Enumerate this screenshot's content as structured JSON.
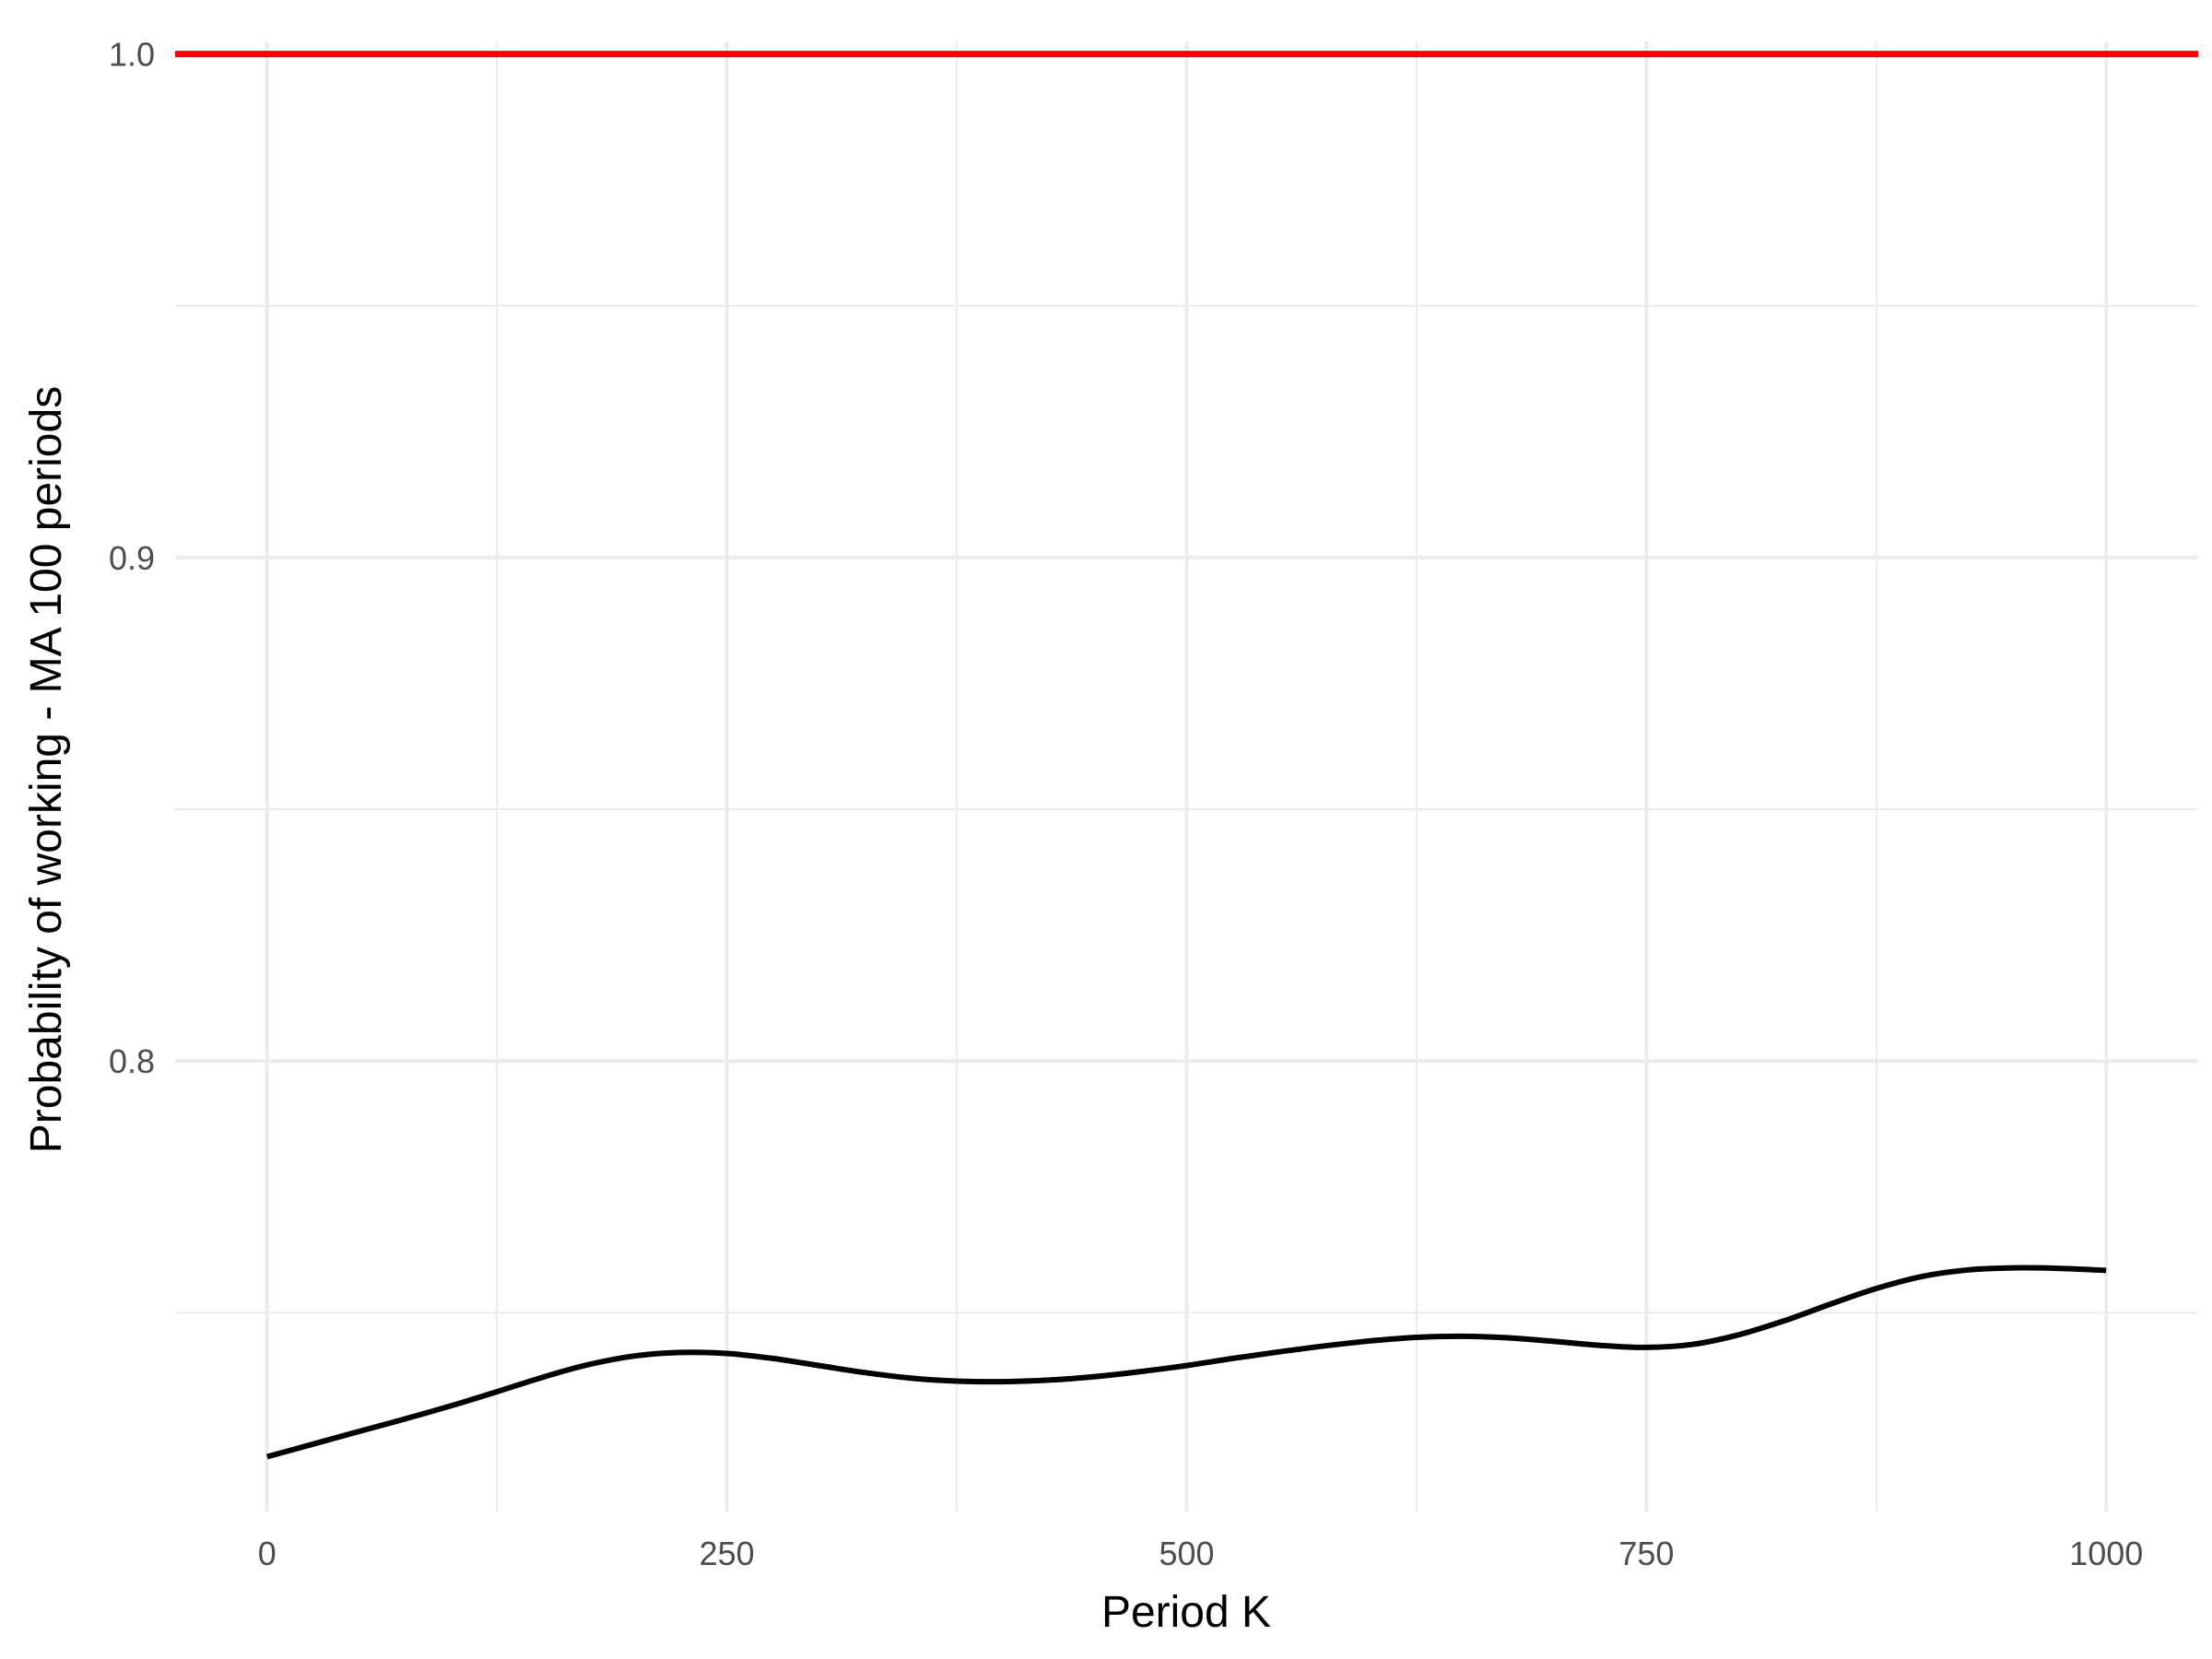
{
  "chart_data": {
    "type": "line",
    "title": "",
    "xlabel": "Period K",
    "ylabel": "Probability of working - MA 100 periods",
    "xlim": [
      -50,
      1050
    ],
    "ylim": [
      0.7105,
      1.0025
    ],
    "x_ticks": [
      0,
      250,
      500,
      750,
      1000
    ],
    "x_tick_labels": [
      "0",
      "250",
      "500",
      "750",
      "1000"
    ],
    "x_minor_ticks": [
      125,
      375,
      625,
      875
    ],
    "y_ticks": [
      0.8,
      0.9,
      1.0
    ],
    "y_tick_labels": [
      "0.8",
      "0.9",
      "1.0"
    ],
    "y_minor_ticks": [
      0.75,
      0.85,
      0.95
    ],
    "grid": true,
    "legend": "none",
    "reference_line": {
      "y": 1.0,
      "color": "#ff0000"
    },
    "series": [
      {
        "color": "#000000",
        "x": [
          0,
          25,
          50,
          75,
          100,
          125,
          150,
          175,
          200,
          225,
          250,
          275,
          300,
          325,
          350,
          375,
          400,
          425,
          450,
          475,
          500,
          525,
          550,
          575,
          600,
          625,
          650,
          675,
          700,
          725,
          750,
          775,
          800,
          825,
          850,
          875,
          900,
          925,
          950,
          975,
          1000
        ],
        "y": [
          0.7214,
          0.7239,
          0.7264,
          0.7289,
          0.7315,
          0.7343,
          0.7372,
          0.7397,
          0.7414,
          0.7421,
          0.7419,
          0.7409,
          0.7395,
          0.7381,
          0.737,
          0.7364,
          0.7363,
          0.7366,
          0.7373,
          0.7383,
          0.7395,
          0.7409,
          0.7422,
          0.7434,
          0.7444,
          0.7451,
          0.7453,
          0.745,
          0.7443,
          0.7435,
          0.7431,
          0.7437,
          0.7456,
          0.7484,
          0.7517,
          0.7548,
          0.7572,
          0.7585,
          0.7589,
          0.7588,
          0.7584
        ]
      }
    ]
  }
}
